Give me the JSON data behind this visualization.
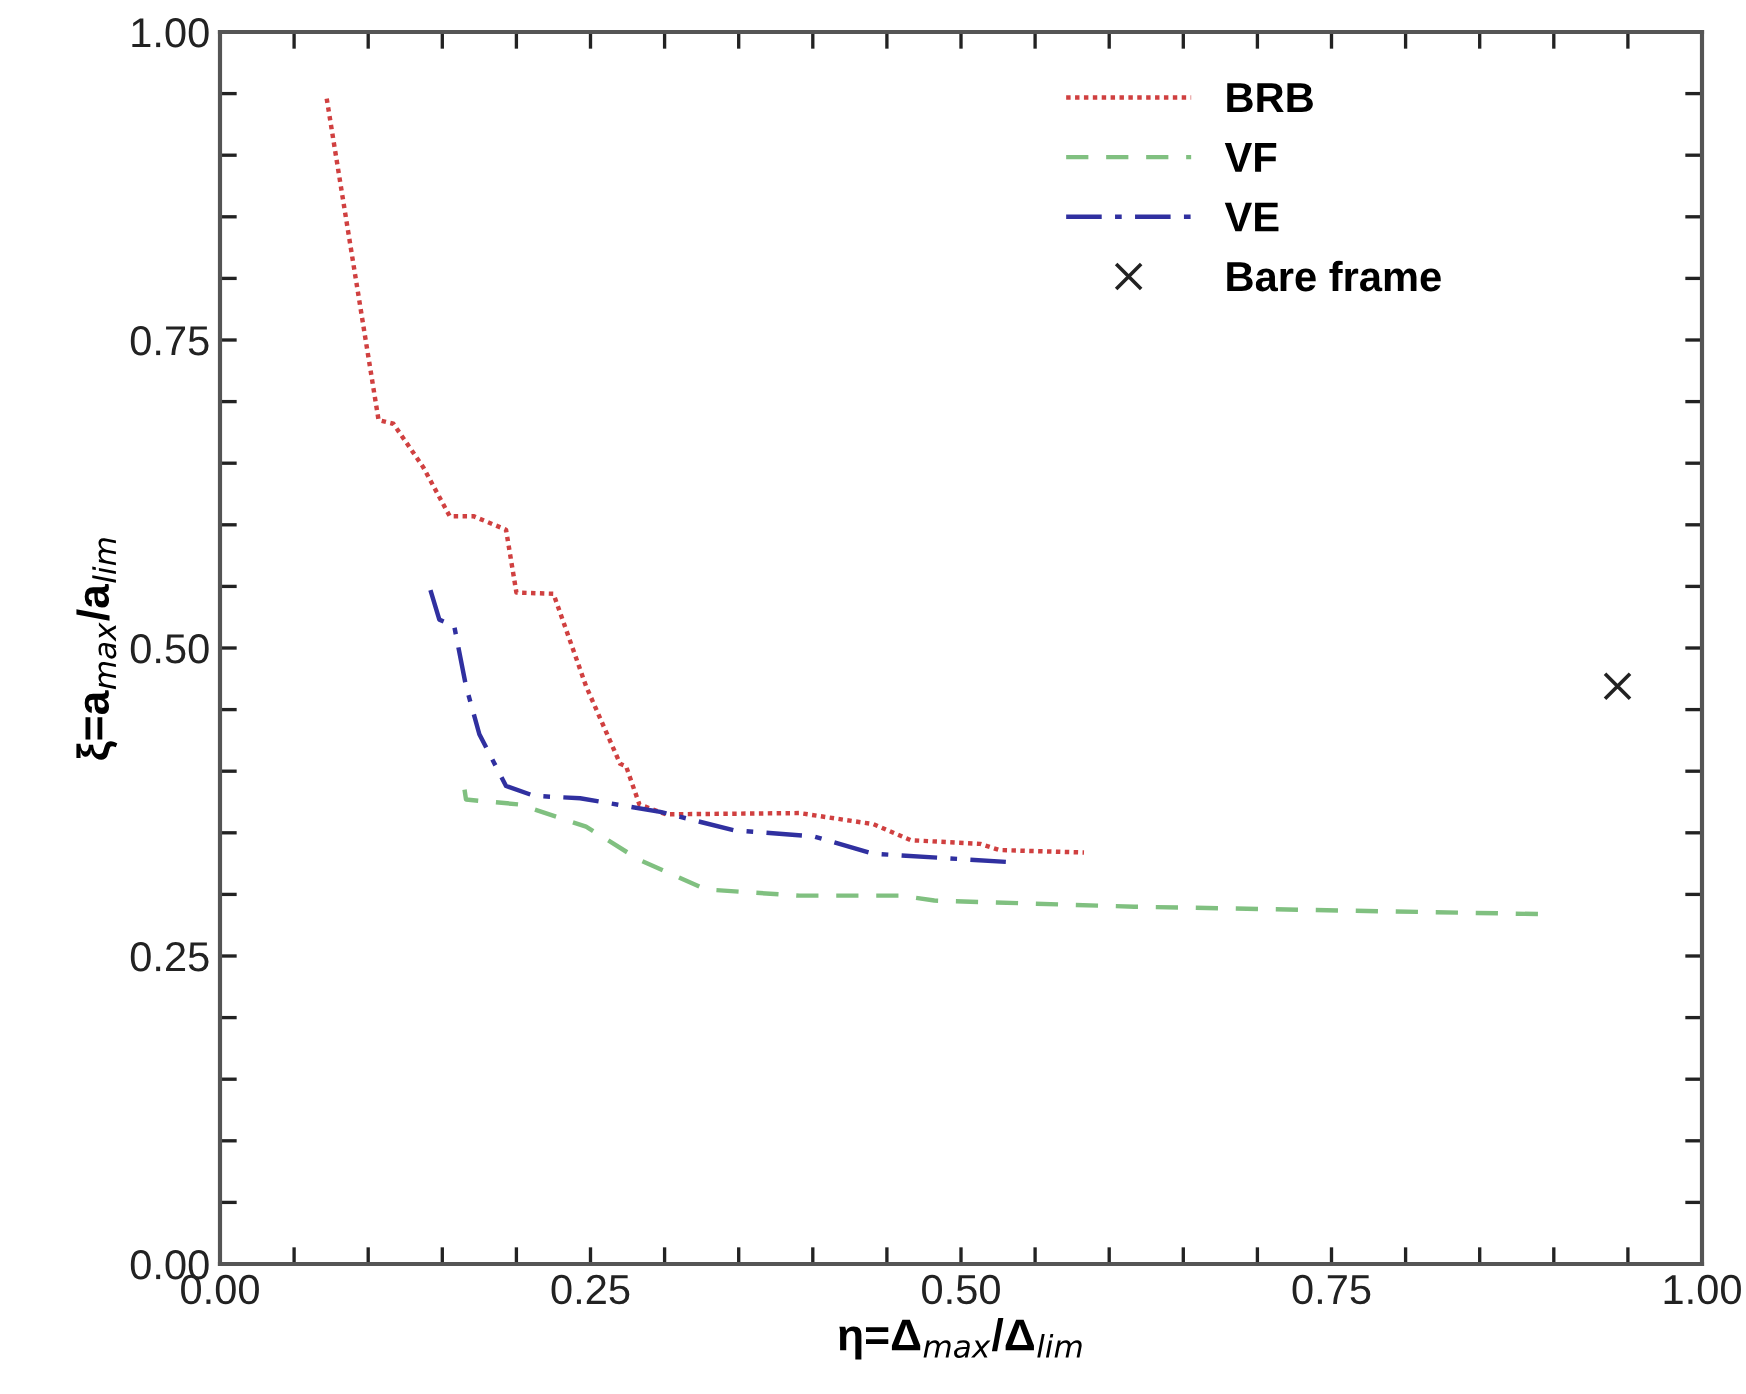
{
  "chart_data": {
    "type": "line",
    "xlabel": "η=Δ$_{max}$/Δ$_{lim}$",
    "ylabel": "ξ=a$_{max}$/a$_{lim}$",
    "xlim": [
      0,
      1
    ],
    "ylim": [
      0,
      1
    ],
    "xticks": [
      {
        "value": 0,
        "label": "0.00"
      },
      {
        "value": 0.05,
        "label": null
      },
      {
        "value": 0.1,
        "label": null
      },
      {
        "value": 0.15,
        "label": null
      },
      {
        "value": 0.2,
        "label": null
      },
      {
        "value": 0.25,
        "label": "0.25"
      },
      {
        "value": 0.3,
        "label": null
      },
      {
        "value": 0.35,
        "label": null
      },
      {
        "value": 0.4,
        "label": null
      },
      {
        "value": 0.45,
        "label": null
      },
      {
        "value": 0.5,
        "label": "0.50"
      },
      {
        "value": 0.55,
        "label": null
      },
      {
        "value": 0.6,
        "label": null
      },
      {
        "value": 0.65,
        "label": null
      },
      {
        "value": 0.7,
        "label": null
      },
      {
        "value": 0.75,
        "label": "0.75"
      },
      {
        "value": 0.8,
        "label": null
      },
      {
        "value": 0.85,
        "label": null
      },
      {
        "value": 0.9,
        "label": null
      },
      {
        "value": 0.95,
        "label": null
      },
      {
        "value": 1,
        "label": "1.00"
      }
    ],
    "yticks": [
      {
        "value": 0,
        "label": "0.00"
      },
      {
        "value": 0.05,
        "label": null
      },
      {
        "value": 0.1,
        "label": null
      },
      {
        "value": 0.15,
        "label": null
      },
      {
        "value": 0.2,
        "label": null
      },
      {
        "value": 0.25,
        "label": "0.25"
      },
      {
        "value": 0.3,
        "label": null
      },
      {
        "value": 0.35,
        "label": null
      },
      {
        "value": 0.4,
        "label": null
      },
      {
        "value": 0.45,
        "label": null
      },
      {
        "value": 0.5,
        "label": "0.50"
      },
      {
        "value": 0.55,
        "label": null
      },
      {
        "value": 0.6,
        "label": null
      },
      {
        "value": 0.65,
        "label": null
      },
      {
        "value": 0.7,
        "label": null
      },
      {
        "value": 0.75,
        "label": "0.75"
      },
      {
        "value": 0.8,
        "label": null
      },
      {
        "value": 0.85,
        "label": null
      },
      {
        "value": 0.9,
        "label": null
      },
      {
        "value": 0.95,
        "label": null
      },
      {
        "value": 1,
        "label": "1.00"
      }
    ],
    "grid": false,
    "legend": "top right",
    "series": [
      {
        "name": "BRB",
        "color": "#d04040",
        "line_style": "dotted",
        "marker": "none",
        "x": [
          0.072,
          0.107,
          0.117,
          0.137,
          0.155,
          0.171,
          0.193,
          0.2,
          0.225,
          0.247,
          0.27,
          0.274,
          0.283,
          0.301,
          0.391,
          0.441,
          0.466,
          0.513,
          0.526,
          0.583
        ],
        "values": [
          0.946,
          0.685,
          0.682,
          0.647,
          0.607,
          0.607,
          0.596,
          0.545,
          0.544,
          0.469,
          0.406,
          0.404,
          0.373,
          0.365,
          0.366,
          0.357,
          0.344,
          0.341,
          0.336,
          0.334
        ]
      },
      {
        "name": "VF",
        "color": "#80c080",
        "line_style": "dashed",
        "marker": "none",
        "x": [
          0.165,
          0.166,
          0.202,
          0.247,
          0.283,
          0.328,
          0.391,
          0.459,
          0.482,
          0.617,
          0.891
        ],
        "values": [
          0.385,
          0.377,
          0.373,
          0.355,
          0.328,
          0.304,
          0.299,
          0.299,
          0.295,
          0.29,
          0.284
        ]
      },
      {
        "name": "VE",
        "color": "#3030a0",
        "line_style": "dashdot",
        "marker": "none",
        "x": [
          0.142,
          0.148,
          0.158,
          0.166,
          0.175,
          0.193,
          0.212,
          0.243,
          0.297,
          0.347,
          0.401,
          0.418,
          0.441,
          0.536
        ],
        "values": [
          0.547,
          0.523,
          0.518,
          0.469,
          0.43,
          0.388,
          0.38,
          0.378,
          0.367,
          0.352,
          0.347,
          0.341,
          0.333,
          0.326
        ]
      },
      {
        "name": "Bare frame",
        "type": "scatter",
        "color": "#222222",
        "marker": "cross",
        "x": [
          0.943
        ],
        "values": [
          0.469
        ]
      }
    ]
  }
}
